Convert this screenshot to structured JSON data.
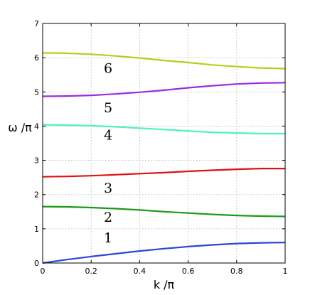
{
  "chart_data": {
    "type": "line",
    "xlabel": "k /π",
    "ylabel": "ω /π",
    "xlim": [
      0,
      1
    ],
    "ylim": [
      0,
      7
    ],
    "grid": true,
    "x_ticks": [
      "0",
      "0.2",
      "0.4",
      "0.6",
      "0.8",
      "1"
    ],
    "y_ticks": [
      "0",
      "1",
      "2",
      "3",
      "4",
      "5",
      "6",
      "7"
    ],
    "x": [
      0,
      0.1,
      0.2,
      0.3,
      0.4,
      0.5,
      0.6,
      0.7,
      0.8,
      0.9,
      1.0
    ],
    "series": [
      {
        "name": "1",
        "color": "#2a45d8",
        "values": [
          0.0,
          0.1,
          0.19,
          0.27,
          0.35,
          0.42,
          0.48,
          0.53,
          0.57,
          0.59,
          0.6
        ]
      },
      {
        "name": "2",
        "color": "#1a9a1a",
        "values": [
          1.65,
          1.64,
          1.62,
          1.59,
          1.55,
          1.5,
          1.46,
          1.42,
          1.39,
          1.37,
          1.36
        ]
      },
      {
        "name": "3",
        "color": "#e01010",
        "values": [
          2.52,
          2.53,
          2.55,
          2.58,
          2.61,
          2.64,
          2.68,
          2.71,
          2.74,
          2.76,
          2.76
        ]
      },
      {
        "name": "4",
        "color": "#4cf2bf",
        "values": [
          4.04,
          4.03,
          4.01,
          3.98,
          3.94,
          3.9,
          3.86,
          3.82,
          3.8,
          3.78,
          3.78
        ]
      },
      {
        "name": "5",
        "color": "#9b2be0",
        "values": [
          4.87,
          4.88,
          4.9,
          4.94,
          4.99,
          5.05,
          5.12,
          5.18,
          5.23,
          5.26,
          5.27
        ]
      },
      {
        "name": "6",
        "color": "#b2d11a",
        "values": [
          6.14,
          6.13,
          6.1,
          6.05,
          5.99,
          5.92,
          5.86,
          5.79,
          5.74,
          5.7,
          5.68
        ]
      }
    ],
    "annotations": [
      {
        "text": "1",
        "x": 0.27,
        "y": 0.75
      },
      {
        "text": "2",
        "x": 0.27,
        "y": 1.35
      },
      {
        "text": "3",
        "x": 0.27,
        "y": 2.2
      },
      {
        "text": "4",
        "x": 0.27,
        "y": 3.75
      },
      {
        "text": "5",
        "x": 0.27,
        "y": 4.55
      },
      {
        "text": "6",
        "x": 0.27,
        "y": 5.7
      }
    ]
  }
}
